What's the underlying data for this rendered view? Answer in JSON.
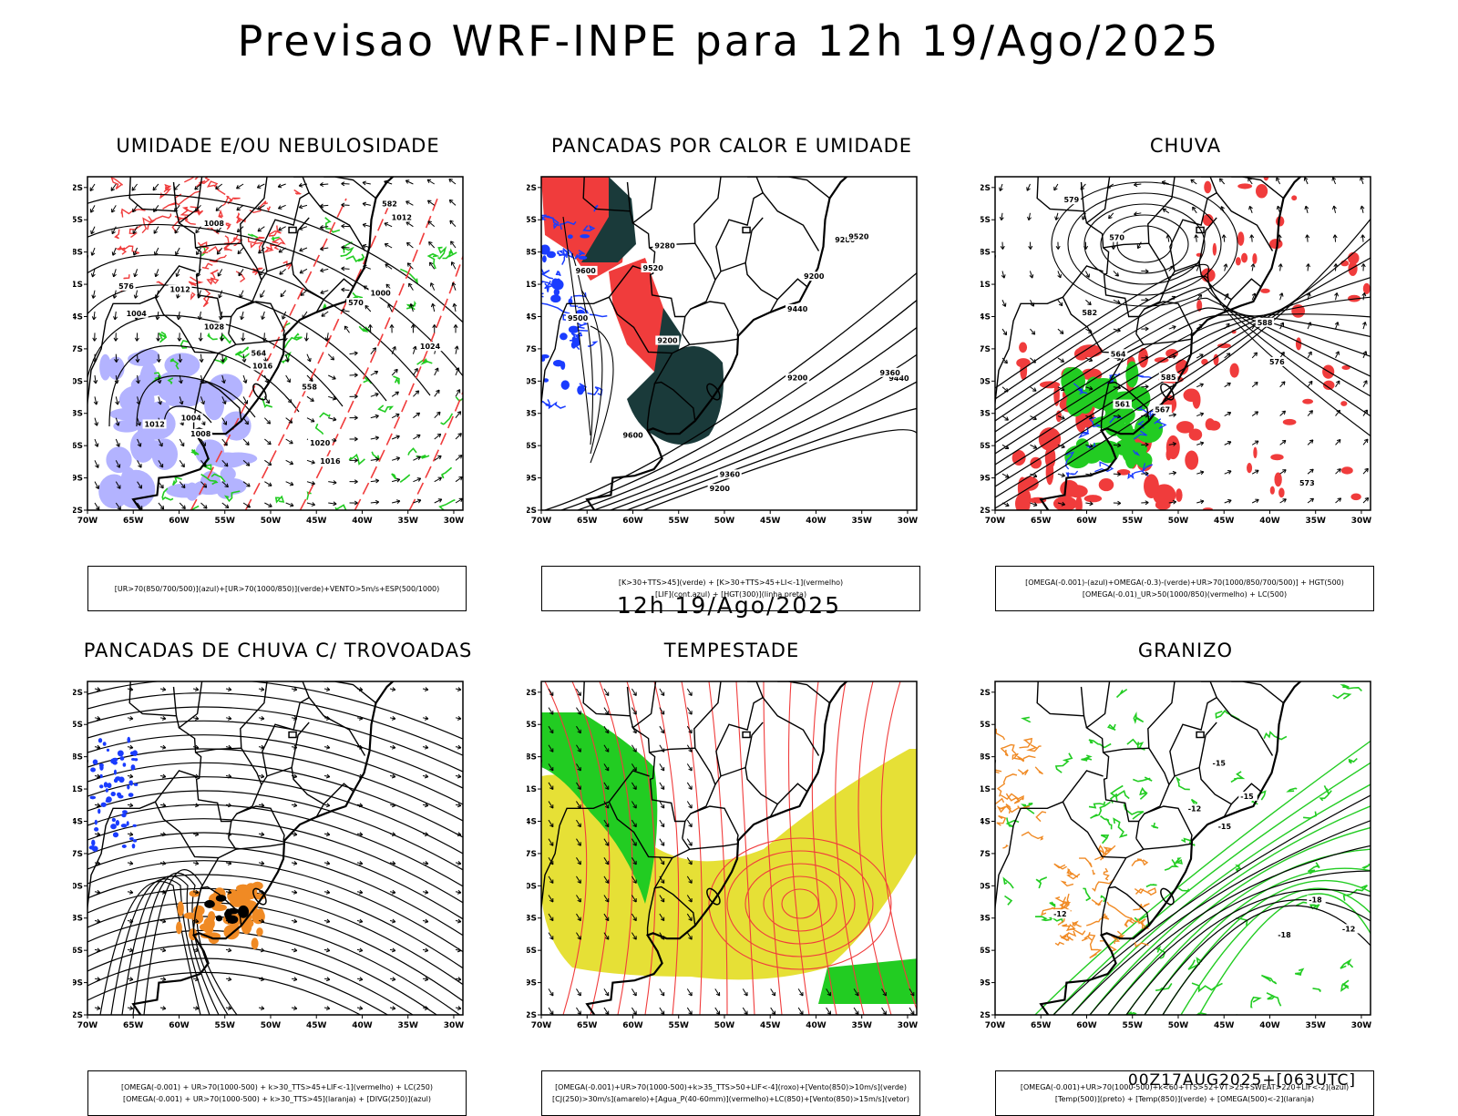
{
  "title": "Previsao WRF-INPE  para 12h 19/Ago/2025",
  "subtitle": "12h 19/Ago/2025",
  "footer": "00Z17AUG2025+[063UTC]",
  "axes": {
    "lon_labels": [
      "70W",
      "65W",
      "60W",
      "55W",
      "50W",
      "45W",
      "40W",
      "35W",
      "30W"
    ],
    "lat_labels": [
      "12S",
      "15S",
      "18S",
      "21S",
      "24S",
      "27S",
      "30S",
      "33S",
      "36S",
      "39S",
      "42S"
    ]
  },
  "colors": {
    "red": "#f03c3c",
    "green": "#22cc22",
    "blue": "#1a3cff",
    "lavender": "#a6a6ff",
    "orange": "#f08a24",
    "yellow": "#e6e036",
    "darkteal": "#1a3a3a",
    "black": "#000000"
  },
  "panels": [
    {
      "id": "p1",
      "title": "UMIDADE E/OU NEBULOSIDADE",
      "legend": [
        "[UR>70(850/700/500)](azul)+[UR>70(1000/850)](verde)+VENTO>5m/s+ESP(500/1000)"
      ],
      "labels": [
        "1016",
        "1008",
        "1004",
        "1012",
        "1000",
        "1020",
        "1024",
        "1028",
        "1016",
        "1008",
        "1012",
        "576",
        "564",
        "558",
        "570",
        "582",
        "1004",
        "1012"
      ]
    },
    {
      "id": "p2",
      "title": "PANCADAS POR CALOR E UMIDADE",
      "legend": [
        "[K>30+TTS>45](verde) + [K>30+TTS>45+LI<-1](vermelho)",
        "[LIF](cont.azul) + [HGT(300)](linha preta)"
      ],
      "labels": [
        "9600",
        "9520",
        "9440",
        "9360",
        "9280",
        "9200",
        "9200",
        "9200",
        "9520",
        "9440",
        "9360",
        "9280",
        "9200",
        "9600",
        "9500"
      ]
    },
    {
      "id": "p3",
      "title": "CHUVA",
      "legend": [
        "[OMEGA(-0.001)-(azul)+OMEGA(-0.3)-(verde)+UR>70(1000/850/700/500)] + HGT(500)",
        "[OMEGA(-0.01)_UR>50(1000/850)(vermelho) + LC(500)"
      ],
      "labels": [
        "585",
        "582",
        "579",
        "576",
        "573",
        "570",
        "567",
        "564",
        "561",
        "588"
      ]
    },
    {
      "id": "p4",
      "title": "PANCADAS DE CHUVA C/ TROVOADAS",
      "legend": [
        "[OMEGA(-0.001) + UR>70(1000-500) + k>30_TTS>45+LIF<-1](vermelho) + LC(250)",
        "[OMEGA(-0.001) + UR>70(1000-500) + k>30_TTS>45](laranja) + [DIVG(250)](azul)"
      ],
      "labels": []
    },
    {
      "id": "p5",
      "title": "TEMPESTADE",
      "legend": [
        "[OMEGA(-0.001)+UR>70(1000-500)+k>35_TTS>50+LIF<-4](roxo)+[Vento(850)>10m/s](verde)",
        "[CJ(250)>30m/s](amarelo)+[Agua_P(40-60mm)](vermelho)+LC(850)+[Vento(850)>15m/s](vetor)"
      ],
      "labels": []
    },
    {
      "id": "p6",
      "title": "GRANIZO",
      "legend": [
        "[OMEGA(-0.001)+UR>70(1000-500)+k<60+TTS>52+VT>25+SWEAT>220+LIF<-2](azul)",
        "[Temp(500)](preto) + [Temp(850)](verde) + [OMEGA(500)<-2](laranja)"
      ],
      "labels": [
        "-12",
        "-15",
        "-18",
        "-12",
        "-15",
        "-18",
        "-12",
        "-15"
      ]
    }
  ]
}
